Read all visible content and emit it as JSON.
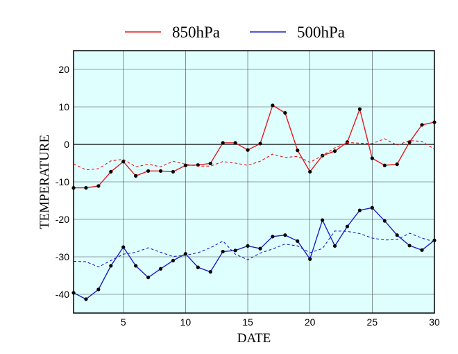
{
  "chart_data": {
    "type": "line",
    "xlabel": "DATE",
    "ylabel": "TEMPERATURE",
    "xlim": [
      1,
      30
    ],
    "ylim": [
      -45,
      25
    ],
    "xticks": [
      5,
      10,
      15,
      20,
      25,
      30
    ],
    "yticks": [
      -40,
      -30,
      -20,
      -10,
      0,
      10,
      20
    ],
    "grid": true,
    "zero_line": true,
    "legend_position": "top-center",
    "plot_background": "#dfffff",
    "x": [
      1,
      2,
      3,
      4,
      5,
      6,
      7,
      8,
      9,
      10,
      11,
      12,
      13,
      14,
      15,
      16,
      17,
      18,
      19,
      20,
      21,
      22,
      23,
      24,
      25,
      26,
      27,
      28,
      29,
      30
    ],
    "series": [
      {
        "name": "850hPa",
        "color": "#e8171c",
        "style": "solid",
        "markers": true,
        "values": [
          -11.6,
          -11.6,
          -11.1,
          -7.3,
          -4.6,
          -8.4,
          -7.1,
          -7.1,
          -7.3,
          -5.6,
          -5.5,
          -5.1,
          0.4,
          0.4,
          -1.5,
          0.2,
          10.4,
          8.4,
          -1.6,
          -7.3,
          -3.0,
          -1.8,
          0.6,
          9.4,
          -3.7,
          -5.6,
          -5.3,
          0.6,
          5.2,
          5.9
        ]
      },
      {
        "name": "850hPa-dashed",
        "color": "#e8171c",
        "style": "dashed",
        "markers": false,
        "values": [
          -5.2,
          -6.8,
          -6.5,
          -4.4,
          -4.0,
          -6.0,
          -5.3,
          -6.0,
          -4.5,
          -5.3,
          -5.8,
          -5.8,
          -4.6,
          -5.0,
          -5.6,
          -4.5,
          -2.6,
          -3.5,
          -3.2,
          -4.8,
          -3.0,
          -0.9,
          0.5,
          0.3,
          0.2,
          1.5,
          -0.2,
          1.0,
          0.8,
          -1.3
        ]
      },
      {
        "name": "500hPa",
        "color": "#1c1cc8",
        "style": "solid",
        "markers": true,
        "values": [
          -39.6,
          -41.3,
          -38.7,
          -32.4,
          -27.4,
          -32.4,
          -35.5,
          -33.2,
          -31.0,
          -29.2,
          -32.8,
          -34.0,
          -28.6,
          -28.3,
          -27.1,
          -27.8,
          -24.6,
          -24.2,
          -25.8,
          -30.6,
          -20.2,
          -27.1,
          -21.9,
          -17.6,
          -16.9,
          -20.4,
          -24.2,
          -27.0,
          -28.2,
          -25.6
        ]
      },
      {
        "name": "500hPa-dashed",
        "color": "#1c1cc8",
        "style": "dashed",
        "markers": false,
        "values": [
          -31.2,
          -31.3,
          -32.7,
          -31.0,
          -29.3,
          -28.8,
          -27.6,
          -28.8,
          -29.9,
          -29.6,
          -28.9,
          -27.6,
          -25.8,
          -29.3,
          -30.8,
          -29.0,
          -27.9,
          -26.6,
          -27.1,
          -28.9,
          -27.8,
          -23.1,
          -23.2,
          -23.8,
          -25.0,
          -25.5,
          -25.4,
          -23.7,
          -25.0,
          -26.0
        ]
      }
    ],
    "legend": [
      {
        "label": "850hPa",
        "color": "#e8171c"
      },
      {
        "label": "500hPa",
        "color": "#1c1cc8"
      }
    ]
  }
}
